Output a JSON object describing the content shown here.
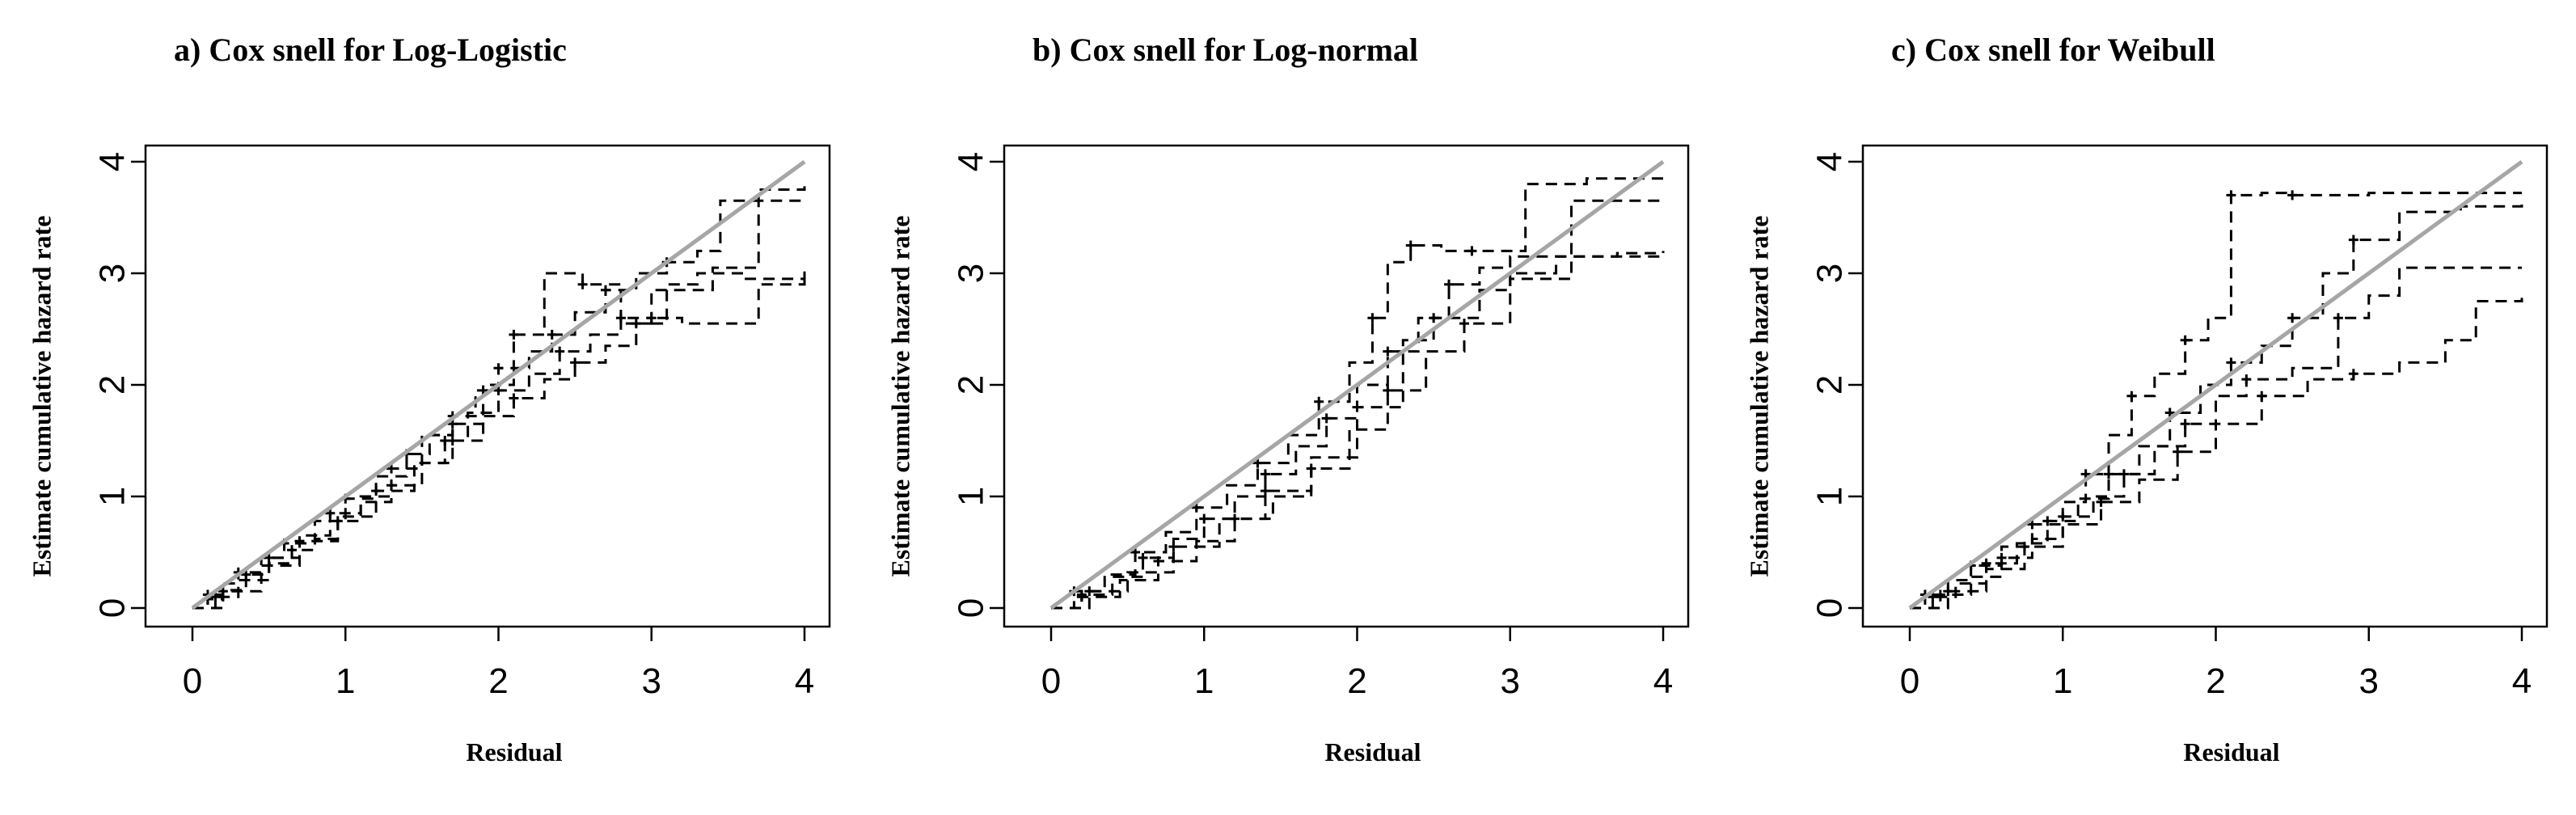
{
  "chart_data": [
    {
      "type": "line",
      "title": "a) Cox snell for Log-Logistic",
      "xlabel": "Residual",
      "ylabel": "Estimate cumulative hazard rate",
      "xlim": [
        0,
        4
      ],
      "ylim": [
        0,
        4
      ],
      "xticks": [
        "0",
        "1",
        "2",
        "3",
        "4"
      ],
      "yticks": [
        "0",
        "1",
        "2",
        "3",
        "4"
      ],
      "reference_line": {
        "x": [
          0,
          4
        ],
        "y": [
          0,
          4
        ],
        "color": "#a6a6a6"
      },
      "series": [
        {
          "style": "dashed",
          "color": "#000000",
          "x": [
            0.0,
            0.1,
            0.2,
            0.3,
            0.45,
            0.6,
            0.8,
            1.0,
            1.2,
            1.4,
            1.55,
            1.7,
            1.85,
            2.0,
            2.2,
            2.35,
            2.5,
            2.7,
            2.9,
            3.1,
            3.3,
            3.45,
            3.7,
            4.0
          ],
          "y": [
            0.0,
            0.12,
            0.22,
            0.32,
            0.45,
            0.58,
            0.78,
            0.98,
            1.18,
            1.38,
            1.55,
            1.72,
            1.95,
            2.15,
            2.3,
            2.45,
            2.65,
            2.85,
            3.0,
            3.1,
            3.2,
            3.65,
            3.75,
            3.78
          ]
        },
        {
          "style": "dashed",
          "color": "#000000",
          "x": [
            0.0,
            0.1,
            0.2,
            0.35,
            0.5,
            0.65,
            0.8,
            0.95,
            1.1,
            1.3,
            1.5,
            1.65,
            1.8,
            2.0,
            2.2,
            2.4,
            2.6,
            2.8,
            3.0,
            3.4,
            3.7,
            4.0
          ],
          "y": [
            0.0,
            0.08,
            0.16,
            0.3,
            0.4,
            0.52,
            0.62,
            0.78,
            0.95,
            1.1,
            1.3,
            1.5,
            1.75,
            1.95,
            2.1,
            2.3,
            2.45,
            2.6,
            2.85,
            3.05,
            3.65,
            3.65
          ]
        },
        {
          "style": "dashed",
          "color": "#000000",
          "x": [
            0.0,
            0.15,
            0.3,
            0.5,
            0.7,
            0.9,
            1.1,
            1.3,
            1.5,
            1.7,
            1.9,
            2.1,
            2.3,
            2.55,
            2.8,
            3.0,
            3.2,
            3.5,
            3.7,
            4.0
          ],
          "y": [
            0.0,
            0.1,
            0.25,
            0.45,
            0.65,
            0.85,
            1.0,
            1.25,
            1.55,
            1.65,
            2.0,
            2.45,
            3.0,
            2.9,
            2.55,
            2.6,
            2.55,
            2.55,
            2.9,
            2.98
          ]
        },
        {
          "style": "dashed",
          "color": "#000000",
          "x": [
            0.0,
            0.2,
            0.45,
            0.7,
            0.95,
            1.2,
            1.45,
            1.7,
            1.9,
            2.1,
            2.3,
            2.5,
            2.7,
            2.9,
            3.1,
            3.3,
            3.6,
            4.0
          ],
          "y": [
            0.0,
            0.15,
            0.38,
            0.6,
            0.82,
            1.05,
            1.3,
            1.5,
            1.72,
            1.88,
            2.05,
            2.2,
            2.35,
            2.55,
            2.9,
            3.0,
            2.95,
            3.02
          ]
        }
      ]
    },
    {
      "type": "line",
      "title": "b) Cox snell for Log-normal",
      "xlabel": "Residual",
      "ylabel": "Estimate cumulative hazard rate",
      "xlim": [
        0,
        4
      ],
      "ylim": [
        0,
        4
      ],
      "xticks": [
        "0",
        "1",
        "2",
        "3",
        "4"
      ],
      "yticks": [
        "0",
        "1",
        "2",
        "3",
        "4"
      ],
      "reference_line": {
        "x": [
          0,
          4
        ],
        "y": [
          0,
          4
        ],
        "color": "#a6a6a6"
      },
      "series": [
        {
          "style": "dashed",
          "color": "#000000",
          "x": [
            0.0,
            0.15,
            0.35,
            0.55,
            0.75,
            0.95,
            1.15,
            1.35,
            1.55,
            1.75,
            1.95,
            2.1,
            2.2,
            2.35,
            2.55,
            2.75,
            3.1,
            3.5,
            4.0
          ],
          "y": [
            0.0,
            0.15,
            0.3,
            0.5,
            0.68,
            0.9,
            1.1,
            1.3,
            1.55,
            1.85,
            2.2,
            2.6,
            3.1,
            3.25,
            3.2,
            3.2,
            3.8,
            3.85,
            3.85
          ]
        },
        {
          "style": "dashed",
          "color": "#000000",
          "x": [
            0.0,
            0.2,
            0.4,
            0.6,
            0.8,
            1.0,
            1.2,
            1.4,
            1.6,
            1.8,
            2.0,
            2.2,
            2.4,
            2.6,
            2.8,
            3.0,
            3.4,
            4.0
          ],
          "y": [
            0.0,
            0.12,
            0.28,
            0.45,
            0.62,
            0.8,
            1.0,
            1.2,
            1.45,
            1.7,
            2.0,
            2.3,
            2.6,
            2.9,
            3.05,
            3.15,
            3.65,
            3.65
          ]
        },
        {
          "style": "dashed",
          "color": "#000000",
          "x": [
            0.0,
            0.2,
            0.45,
            0.7,
            0.95,
            1.2,
            1.45,
            1.7,
            1.95,
            2.2,
            2.45,
            2.7,
            3.0,
            3.4,
            3.7,
            4.0
          ],
          "y": [
            0.0,
            0.1,
            0.25,
            0.42,
            0.6,
            0.8,
            1.0,
            1.25,
            1.6,
            1.95,
            2.3,
            2.55,
            2.95,
            3.15,
            3.18,
            3.18
          ]
        },
        {
          "style": "dashed",
          "color": "#000000",
          "x": [
            0.0,
            0.25,
            0.5,
            0.8,
            1.1,
            1.4,
            1.7,
            2.0,
            2.3,
            2.5,
            2.8,
            3.0,
            3.3,
            4.0
          ],
          "y": [
            0.0,
            0.15,
            0.32,
            0.55,
            0.8,
            1.05,
            1.35,
            1.8,
            2.4,
            2.6,
            2.85,
            3.0,
            3.15,
            3.2
          ]
        }
      ]
    },
    {
      "type": "line",
      "title": "c) Cox snell for Weibull",
      "xlabel": "Residual",
      "ylabel": "Estimate cumulative hazard rate",
      "xlim": [
        0,
        4
      ],
      "ylim": [
        0,
        4
      ],
      "xticks": [
        "0",
        "1",
        "2",
        "3",
        "4"
      ],
      "yticks": [
        "0",
        "1",
        "2",
        "3",
        "4"
      ],
      "reference_line": {
        "x": [
          0,
          4
        ],
        "y": [
          0,
          4
        ],
        "color": "#a6a6a6"
      },
      "series": [
        {
          "style": "dashed",
          "color": "#000000",
          "x": [
            0.0,
            0.1,
            0.25,
            0.4,
            0.6,
            0.8,
            1.0,
            1.15,
            1.3,
            1.45,
            1.6,
            1.8,
            1.95,
            2.1,
            2.3,
            2.5,
            2.75,
            3.0,
            3.4,
            4.0
          ],
          "y": [
            0.0,
            0.12,
            0.25,
            0.38,
            0.55,
            0.75,
            0.95,
            1.2,
            1.55,
            1.9,
            2.1,
            2.4,
            2.6,
            3.7,
            3.72,
            3.7,
            3.7,
            3.72,
            3.72,
            3.72
          ]
        },
        {
          "style": "dashed",
          "color": "#000000",
          "x": [
            0.0,
            0.15,
            0.3,
            0.5,
            0.7,
            0.9,
            1.1,
            1.3,
            1.5,
            1.7,
            1.9,
            2.1,
            2.3,
            2.5,
            2.7,
            2.9,
            3.2,
            3.6,
            4.0
          ],
          "y": [
            0.0,
            0.1,
            0.22,
            0.4,
            0.58,
            0.78,
            0.98,
            1.2,
            1.45,
            1.75,
            2.0,
            2.2,
            2.35,
            2.6,
            3.0,
            3.3,
            3.55,
            3.6,
            3.65
          ]
        },
        {
          "style": "dashed",
          "color": "#000000",
          "x": [
            0.0,
            0.2,
            0.4,
            0.6,
            0.8,
            1.0,
            1.2,
            1.4,
            1.6,
            1.8,
            2.0,
            2.2,
            2.5,
            2.8,
            3.0,
            3.2,
            3.5,
            4.0
          ],
          "y": [
            0.0,
            0.12,
            0.28,
            0.45,
            0.62,
            0.82,
            1.0,
            1.2,
            1.45,
            1.65,
            1.9,
            2.05,
            2.15,
            2.6,
            2.8,
            3.05,
            3.05,
            3.05
          ]
        },
        {
          "style": "dashed",
          "color": "#000000",
          "x": [
            0.0,
            0.25,
            0.5,
            0.75,
            1.0,
            1.25,
            1.5,
            1.75,
            2.0,
            2.3,
            2.6,
            2.9,
            3.2,
            3.5,
            3.7,
            4.0
          ],
          "y": [
            0.0,
            0.15,
            0.35,
            0.55,
            0.75,
            0.95,
            1.15,
            1.4,
            1.65,
            1.9,
            2.05,
            2.1,
            2.2,
            2.4,
            2.75,
            2.78
          ]
        }
      ]
    }
  ]
}
